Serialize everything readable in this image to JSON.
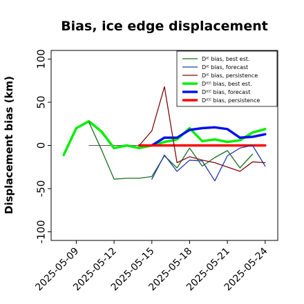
{
  "chart_data": {
    "type": "line",
    "title": "Bias, ice edge displacement",
    "xlabel": "",
    "ylabel": "Displacement bias (km)",
    "ylim": [
      -110,
      110
    ],
    "yticks": [
      -100,
      -50,
      0,
      50,
      100
    ],
    "xticks": [
      "2025-05-09",
      "2025-05-12",
      "2025-05-15",
      "2025-05-18",
      "2025-05-21",
      "2025-05-24"
    ],
    "highlight_tick": "2025-05-15",
    "highlight_color": "#008000",
    "legend_position": "top-right",
    "series": [
      {
        "name": "Dᴵᴱ bias, best est.",
        "color": "#1b6e1b",
        "width": 1.3,
        "points": [
          [
            "2025-05-10",
            27
          ],
          [
            "2025-05-11",
            -5
          ],
          [
            "2025-05-12",
            -39
          ],
          [
            "2025-05-13",
            -38
          ],
          [
            "2025-05-14",
            -38
          ],
          [
            "2025-05-15",
            -36
          ],
          [
            "2025-05-16",
            -12
          ],
          [
            "2025-05-17",
            -26
          ],
          [
            "2025-05-18",
            -3
          ],
          [
            "2025-05-19",
            -24
          ],
          [
            "2025-05-20",
            -14
          ],
          [
            "2025-05-21",
            -6
          ],
          [
            "2025-05-22",
            -26
          ],
          [
            "2025-05-23",
            -10
          ]
        ]
      },
      {
        "name": "Dᴵᴱ bias, forecast",
        "color": "#1f3aa8",
        "width": 1.3,
        "points": [
          [
            "2025-05-15",
            -39
          ],
          [
            "2025-05-16",
            -11
          ],
          [
            "2025-05-17",
            -30
          ],
          [
            "2025-05-18",
            -17
          ],
          [
            "2025-05-19",
            -18
          ],
          [
            "2025-05-20",
            -41
          ],
          [
            "2025-05-21",
            -12
          ],
          [
            "2025-05-22",
            -3
          ],
          [
            "2025-05-23",
            0
          ],
          [
            "2025-05-24",
            -24
          ]
        ]
      },
      {
        "name": "Dᴵᴱ bias, persistence",
        "color": "#7a0a0a",
        "width": 1.3,
        "points": [
          [
            "2025-05-14",
            0
          ],
          [
            "2025-05-15",
            17
          ],
          [
            "2025-05-16",
            68
          ],
          [
            "2025-05-17",
            -20
          ],
          [
            "2025-05-18",
            -13
          ],
          [
            "2025-05-19",
            -17
          ],
          [
            "2025-05-20",
            -20
          ],
          [
            "2025-05-21",
            -25
          ],
          [
            "2025-05-22",
            -30
          ],
          [
            "2025-05-23",
            -19
          ],
          [
            "2025-05-24",
            -20
          ]
        ]
      },
      {
        "name": "Dᴵᴱᴱ bias, best est.",
        "color": "#00ee00",
        "width": 3.5,
        "points": [
          [
            "2025-05-08",
            -11
          ],
          [
            "2025-05-09",
            20
          ],
          [
            "2025-05-10",
            28
          ],
          [
            "2025-05-11",
            16
          ],
          [
            "2025-05-12",
            -3
          ],
          [
            "2025-05-13",
            0
          ],
          [
            "2025-05-14",
            -3
          ],
          [
            "2025-05-15",
            0
          ],
          [
            "2025-05-16",
            4
          ],
          [
            "2025-05-17",
            7
          ],
          [
            "2025-05-18",
            20
          ],
          [
            "2025-05-19",
            5
          ],
          [
            "2025-05-20",
            7
          ],
          [
            "2025-05-21",
            4
          ],
          [
            "2025-05-22",
            6
          ],
          [
            "2025-05-23",
            15
          ],
          [
            "2025-05-24",
            19
          ]
        ]
      },
      {
        "name": "Dᴵᴱᴱ bias, forecast",
        "color": "#0010ee",
        "width": 3.5,
        "points": [
          [
            "2025-05-15",
            0
          ],
          [
            "2025-05-16",
            9
          ],
          [
            "2025-05-17",
            9
          ],
          [
            "2025-05-18",
            18
          ],
          [
            "2025-05-19",
            20
          ],
          [
            "2025-05-20",
            21
          ],
          [
            "2025-05-21",
            19
          ],
          [
            "2025-05-22",
            9
          ],
          [
            "2025-05-23",
            10
          ],
          [
            "2025-05-24",
            13
          ]
        ]
      },
      {
        "name": "Dᴵᴱᴱ bias, persistence",
        "color": "#ff0000",
        "width": 3.5,
        "points": [
          [
            "2025-05-14",
            0
          ],
          [
            "2025-05-15",
            0
          ],
          [
            "2025-05-16",
            0
          ],
          [
            "2025-05-17",
            0
          ],
          [
            "2025-05-18",
            0
          ],
          [
            "2025-05-19",
            0
          ],
          [
            "2025-05-20",
            0
          ],
          [
            "2025-05-21",
            0
          ],
          [
            "2025-05-22",
            0
          ],
          [
            "2025-05-23",
            0
          ],
          [
            "2025-05-24",
            0
          ]
        ]
      },
      {
        "name": "",
        "color": "#555555",
        "width": 1,
        "points": [
          [
            "2025-05-10",
            0
          ],
          [
            "2025-05-14",
            0
          ]
        ]
      }
    ]
  }
}
